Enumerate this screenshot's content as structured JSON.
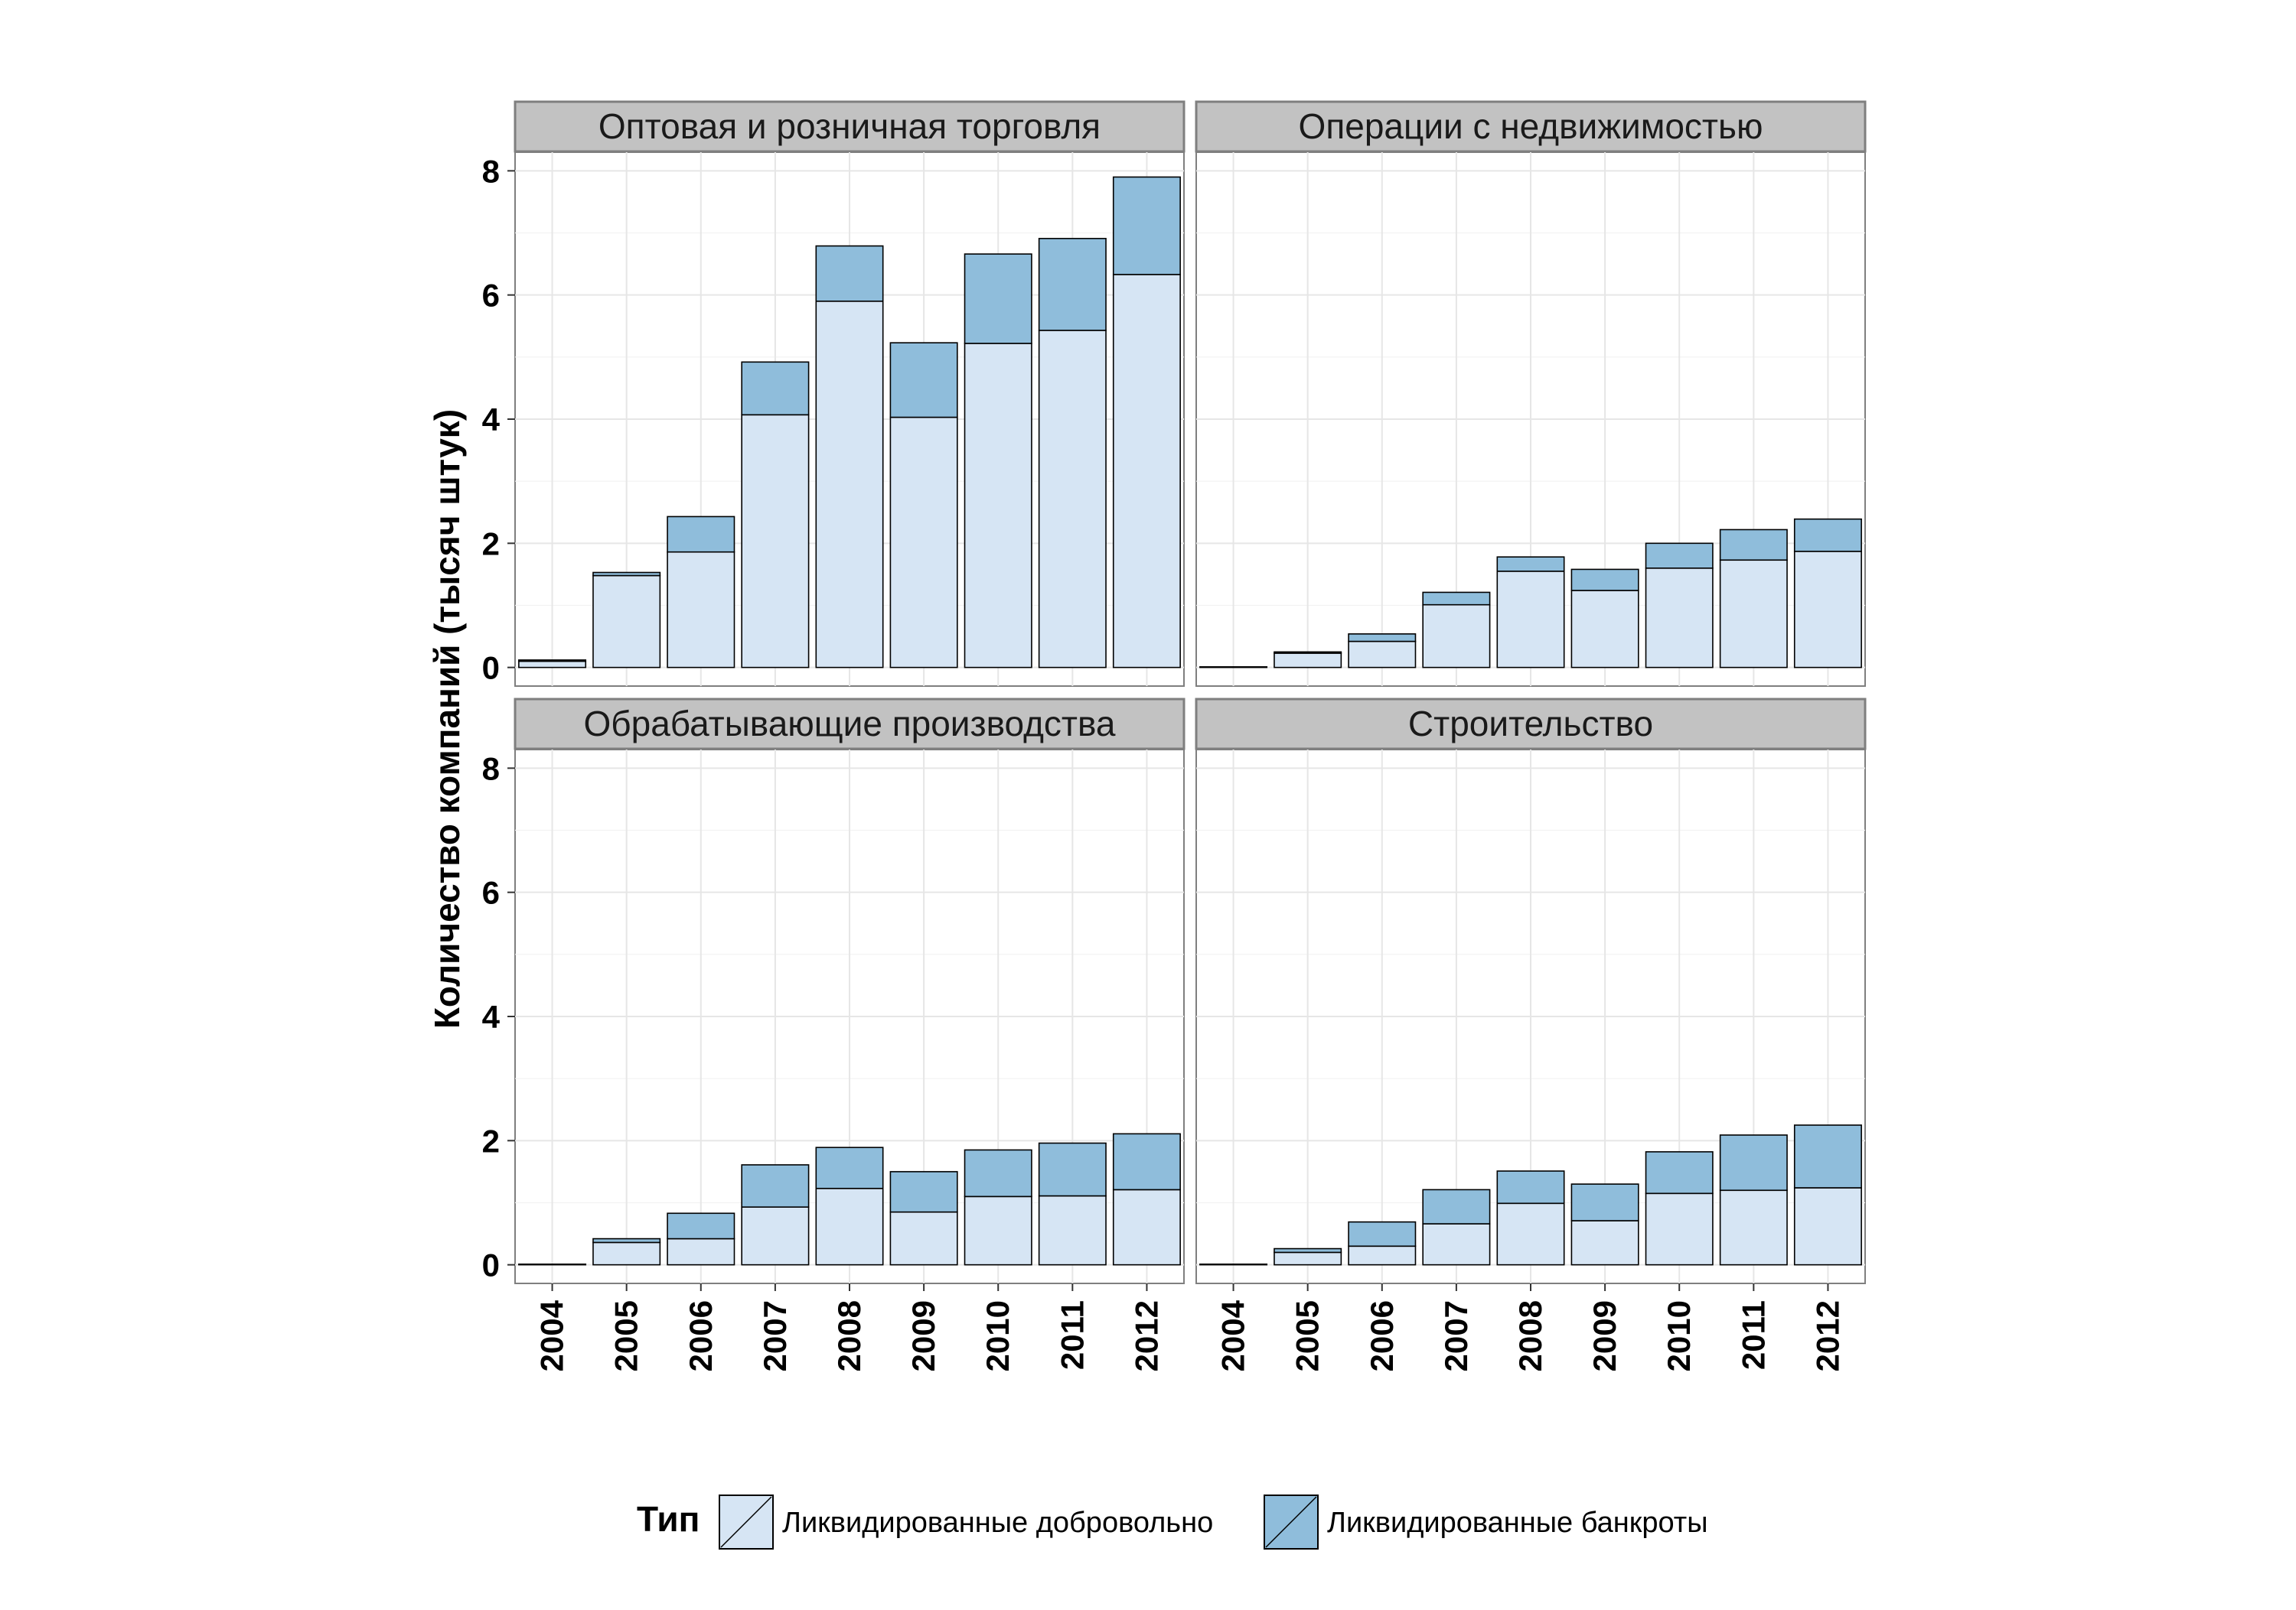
{
  "chart_data": {
    "type": "bar",
    "stacked": true,
    "ylabel": "Количество компаний (тысяч штук)",
    "xlabel": "",
    "ylim": [
      -0.3,
      8.3
    ],
    "yticks": [
      0,
      2,
      4,
      6,
      8
    ],
    "grid": true,
    "legend_position": "bottom",
    "legend": {
      "title": "Тип",
      "entries": [
        "Ликвидированные добровольно",
        "Ликвидированные банкроты"
      ]
    },
    "colors": {
      "voluntary": "#d6e5f4",
      "bankrupt": "#8fbddb",
      "strip": "#c2c2c2"
    },
    "categories": [
      "2004",
      "2005",
      "2006",
      "2007",
      "2008",
      "2009",
      "2010",
      "2011",
      "2012"
    ],
    "panels": [
      {
        "title": "Оптовая и розничная торговля",
        "series": [
          {
            "name": "Ликвидированные добровольно",
            "values": [
              0.1,
              1.48,
              1.86,
              4.07,
              5.9,
              4.03,
              5.22,
              5.43,
              6.33
            ]
          },
          {
            "name": "Ликвидированные банкроты",
            "values": [
              0.02,
              0.05,
              0.57,
              0.85,
              0.89,
              1.2,
              1.44,
              1.48,
              1.57
            ]
          }
        ]
      },
      {
        "title": "Операции с недвижимостью",
        "series": [
          {
            "name": "Ликвидированные добровольно",
            "values": [
              0.01,
              0.23,
              0.42,
              1.01,
              1.55,
              1.24,
              1.6,
              1.73,
              1.87
            ]
          },
          {
            "name": "Ликвидированные банкроты",
            "values": [
              0.0,
              0.02,
              0.12,
              0.2,
              0.23,
              0.34,
              0.4,
              0.49,
              0.52
            ]
          }
        ]
      },
      {
        "title": "Обрабатывающие производства",
        "series": [
          {
            "name": "Ликвидированные добровольно",
            "values": [
              0.01,
              0.36,
              0.42,
              0.93,
              1.23,
              0.85,
              1.1,
              1.11,
              1.21
            ]
          },
          {
            "name": "Ликвидированные банкроты",
            "values": [
              0.0,
              0.06,
              0.41,
              0.68,
              0.66,
              0.65,
              0.75,
              0.85,
              0.9
            ]
          }
        ]
      },
      {
        "title": "Строительство",
        "series": [
          {
            "name": "Ликвидированные добровольно",
            "values": [
              0.01,
              0.2,
              0.3,
              0.66,
              0.99,
              0.71,
              1.15,
              1.2,
              1.24
            ]
          },
          {
            "name": "Ликвидированные банкроты",
            "values": [
              0.0,
              0.06,
              0.39,
              0.55,
              0.52,
              0.59,
              0.67,
              0.89,
              1.01
            ]
          }
        ]
      }
    ]
  }
}
